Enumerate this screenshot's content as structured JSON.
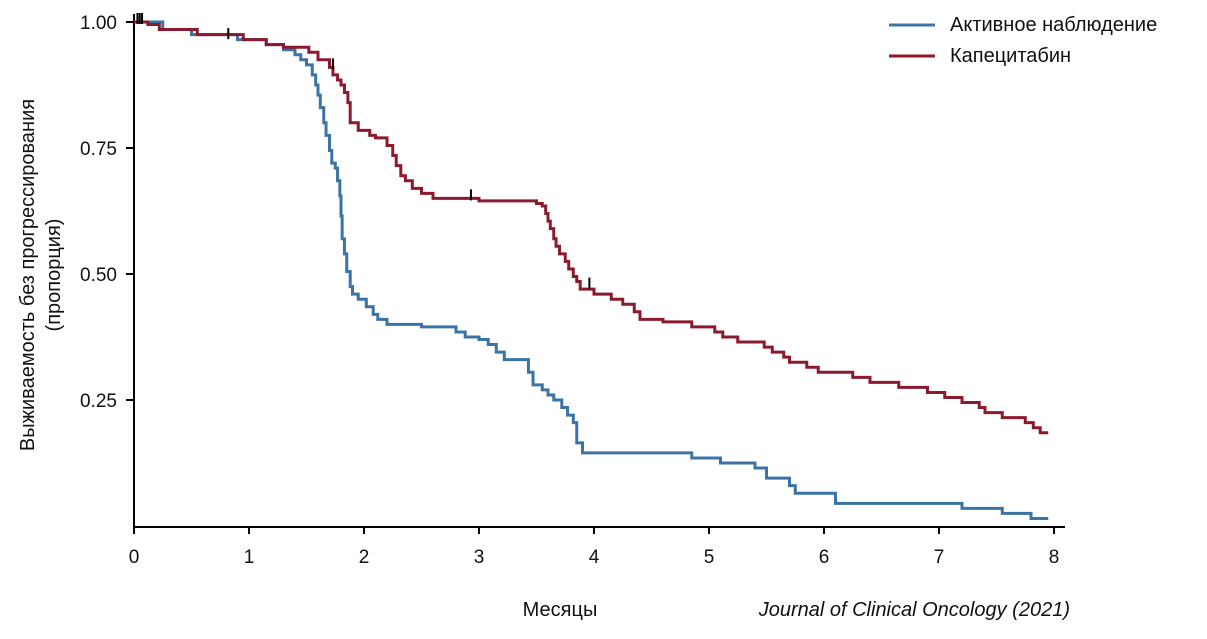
{
  "chart_data": {
    "type": "line",
    "title": "",
    "xlabel": "Месяцы",
    "ylabel_lines": [
      "Выживаемость без прогрессирования",
      "(пропорция)"
    ],
    "xlim": [
      0,
      8
    ],
    "ylim": [
      0,
      1
    ],
    "x_ticks": [
      "0",
      "1",
      "2",
      "3",
      "4",
      "5",
      "6",
      "7",
      "8"
    ],
    "y_ticks": [
      {
        "value": 0.25,
        "label": "0.25"
      },
      {
        "value": 0.5,
        "label": "0.50"
      },
      {
        "value": 0.75,
        "label": "0.75"
      },
      {
        "value": 1.0,
        "label": "1.00"
      }
    ],
    "grid": false,
    "legend_position": "top-right",
    "source": "Journal of Clinical Oncology (2021)",
    "series": [
      {
        "name": "Активное наблюдение",
        "color": "#3b73a6",
        "step": true,
        "points": [
          [
            0,
            1.0
          ],
          [
            0.25,
            0.985
          ],
          [
            0.5,
            0.975
          ],
          [
            0.9,
            0.965
          ],
          [
            1.15,
            0.955
          ],
          [
            1.3,
            0.945
          ],
          [
            1.4,
            0.935
          ],
          [
            1.45,
            0.925
          ],
          [
            1.5,
            0.915
          ],
          [
            1.55,
            0.895
          ],
          [
            1.58,
            0.875
          ],
          [
            1.6,
            0.855
          ],
          [
            1.62,
            0.83
          ],
          [
            1.65,
            0.8
          ],
          [
            1.67,
            0.775
          ],
          [
            1.7,
            0.745
          ],
          [
            1.72,
            0.72
          ],
          [
            1.75,
            0.71
          ],
          [
            1.77,
            0.685
          ],
          [
            1.79,
            0.655
          ],
          [
            1.8,
            0.615
          ],
          [
            1.81,
            0.57
          ],
          [
            1.83,
            0.54
          ],
          [
            1.85,
            0.505
          ],
          [
            1.88,
            0.475
          ],
          [
            1.9,
            0.46
          ],
          [
            1.95,
            0.45
          ],
          [
            2.02,
            0.435
          ],
          [
            2.08,
            0.42
          ],
          [
            2.12,
            0.41
          ],
          [
            2.2,
            0.4
          ],
          [
            2.5,
            0.395
          ],
          [
            2.8,
            0.385
          ],
          [
            2.88,
            0.375
          ],
          [
            3.0,
            0.37
          ],
          [
            3.08,
            0.36
          ],
          [
            3.15,
            0.345
          ],
          [
            3.22,
            0.33
          ],
          [
            3.43,
            0.305
          ],
          [
            3.47,
            0.28
          ],
          [
            3.55,
            0.27
          ],
          [
            3.6,
            0.26
          ],
          [
            3.65,
            0.25
          ],
          [
            3.72,
            0.235
          ],
          [
            3.77,
            0.22
          ],
          [
            3.82,
            0.205
          ],
          [
            3.85,
            0.165
          ],
          [
            3.9,
            0.145
          ],
          [
            4.85,
            0.135
          ],
          [
            5.1,
            0.125
          ],
          [
            5.4,
            0.115
          ],
          [
            5.5,
            0.095
          ],
          [
            5.7,
            0.08
          ],
          [
            5.75,
            0.065
          ],
          [
            6.1,
            0.045
          ],
          [
            7.2,
            0.035
          ],
          [
            7.55,
            0.025
          ],
          [
            7.8,
            0.015
          ],
          [
            7.95,
            0.015
          ]
        ]
      },
      {
        "name": "Капецитабин",
        "color": "#8b1a2e",
        "step": true,
        "points": [
          [
            0,
            1.0
          ],
          [
            0.12,
            0.995
          ],
          [
            0.22,
            0.985
          ],
          [
            0.55,
            0.975
          ],
          [
            0.95,
            0.965
          ],
          [
            1.15,
            0.955
          ],
          [
            1.3,
            0.95
          ],
          [
            1.52,
            0.94
          ],
          [
            1.6,
            0.925
          ],
          [
            1.7,
            0.91
          ],
          [
            1.73,
            0.895
          ],
          [
            1.77,
            0.885
          ],
          [
            1.8,
            0.875
          ],
          [
            1.83,
            0.86
          ],
          [
            1.86,
            0.84
          ],
          [
            1.88,
            0.8
          ],
          [
            1.95,
            0.785
          ],
          [
            2.05,
            0.775
          ],
          [
            2.1,
            0.77
          ],
          [
            2.2,
            0.755
          ],
          [
            2.25,
            0.735
          ],
          [
            2.28,
            0.715
          ],
          [
            2.32,
            0.695
          ],
          [
            2.36,
            0.685
          ],
          [
            2.42,
            0.67
          ],
          [
            2.5,
            0.66
          ],
          [
            2.6,
            0.65
          ],
          [
            3.0,
            0.645
          ],
          [
            3.5,
            0.64
          ],
          [
            3.55,
            0.635
          ],
          [
            3.58,
            0.62
          ],
          [
            3.6,
            0.605
          ],
          [
            3.62,
            0.59
          ],
          [
            3.65,
            0.57
          ],
          [
            3.67,
            0.555
          ],
          [
            3.7,
            0.54
          ],
          [
            3.75,
            0.525
          ],
          [
            3.78,
            0.51
          ],
          [
            3.82,
            0.495
          ],
          [
            3.85,
            0.485
          ],
          [
            3.88,
            0.47
          ],
          [
            4.0,
            0.46
          ],
          [
            4.15,
            0.45
          ],
          [
            4.25,
            0.44
          ],
          [
            4.35,
            0.425
          ],
          [
            4.4,
            0.41
          ],
          [
            4.6,
            0.405
          ],
          [
            4.85,
            0.395
          ],
          [
            5.05,
            0.385
          ],
          [
            5.12,
            0.375
          ],
          [
            5.25,
            0.365
          ],
          [
            5.48,
            0.355
          ],
          [
            5.55,
            0.345
          ],
          [
            5.65,
            0.335
          ],
          [
            5.7,
            0.325
          ],
          [
            5.85,
            0.315
          ],
          [
            5.95,
            0.305
          ],
          [
            6.25,
            0.295
          ],
          [
            6.4,
            0.285
          ],
          [
            6.65,
            0.275
          ],
          [
            6.9,
            0.265
          ],
          [
            7.05,
            0.255
          ],
          [
            7.2,
            0.245
          ],
          [
            7.35,
            0.235
          ],
          [
            7.4,
            0.225
          ],
          [
            7.55,
            0.215
          ],
          [
            7.75,
            0.205
          ],
          [
            7.82,
            0.195
          ],
          [
            7.88,
            0.185
          ],
          [
            7.95,
            0.185
          ]
        ]
      }
    ],
    "censor_marks": [
      {
        "series": "Активное наблюдение",
        "x": 0.05,
        "y": 1.0
      },
      {
        "series": "Активное наблюдение",
        "x": 0.07,
        "y": 1.0
      },
      {
        "series": "Капецитабин",
        "x": 0.03,
        "y": 1.0
      },
      {
        "series": "Капецитабин",
        "x": 0.82,
        "y": 0.97
      },
      {
        "series": "Капецитабин",
        "x": 1.73,
        "y": 0.91
      },
      {
        "series": "Капецитабин",
        "x": 2.93,
        "y": 0.65
      },
      {
        "series": "Капецитабин",
        "x": 3.96,
        "y": 0.475
      }
    ]
  }
}
